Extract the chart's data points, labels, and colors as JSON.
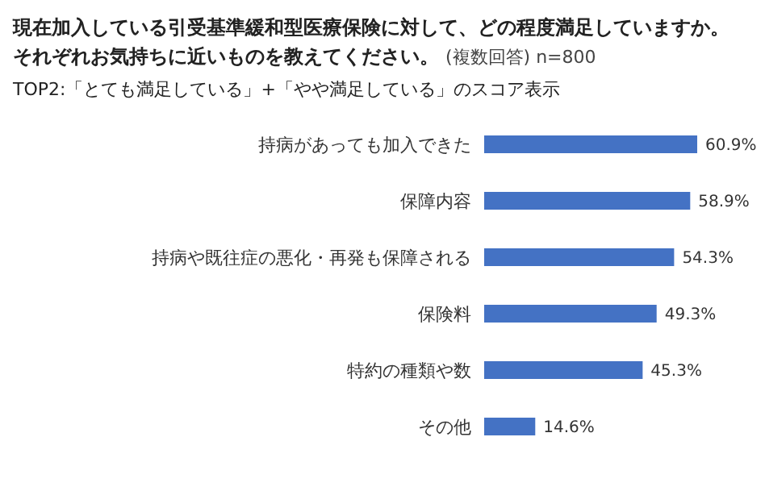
{
  "chart_data": {
    "type": "bar",
    "orientation": "horizontal",
    "title": "現在加入している引受基準緩和型医療保険に対して、どの程度満足していますか。それぞれお気持ちに近いものを教えてください。",
    "annotations": [
      "(複数回答) n=800"
    ],
    "subtitle": "TOP2:「とても満足している」+「やや満足している」のスコア表示",
    "categories": [
      "持病があっても加入できた",
      "保障内容",
      "持病や既往症の悪化・再発も保障される",
      "保険料",
      "特約の種類や数",
      "その他"
    ],
    "values": [
      60.9,
      58.9,
      54.3,
      49.3,
      45.3,
      14.6
    ],
    "value_labels": [
      "60.9%",
      "58.9%",
      "54.3%",
      "49.3%",
      "45.3%",
      "14.6%"
    ],
    "color": "#4472c4"
  }
}
